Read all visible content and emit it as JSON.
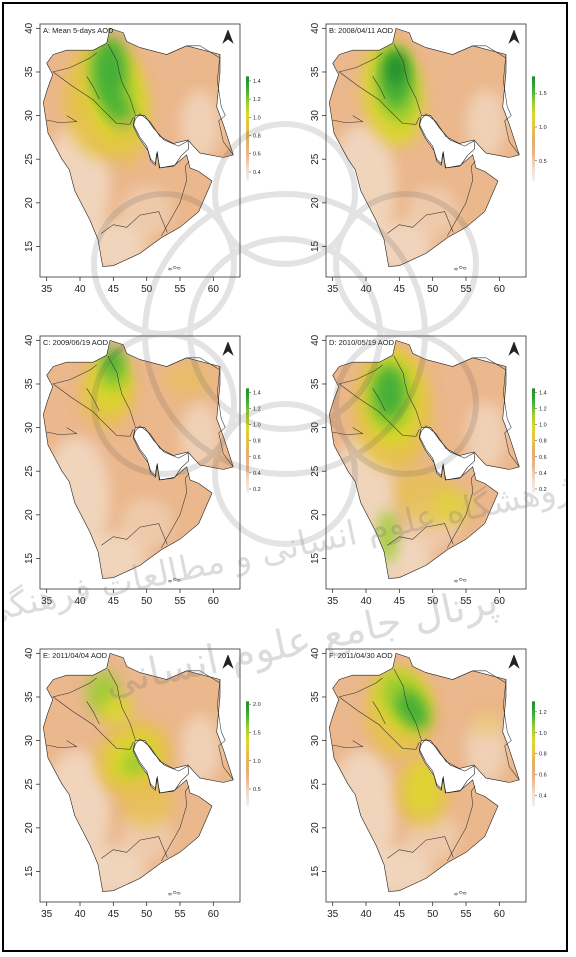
{
  "figure": {
    "panels": [
      {
        "id": "A",
        "title": "A: Mean 5-days AOD",
        "legend": {
          "max": 1.45,
          "ticks": [
            "1.4",
            "1.2",
            "1.0",
            "0.8",
            "0.6",
            "0.4"
          ],
          "tick_values": [
            1.4,
            1.2,
            1.0,
            0.8,
            0.6,
            0.4
          ],
          "min": 0.3
        }
      },
      {
        "id": "B",
        "title": "B: 2008/04/11 AOD",
        "legend": {
          "max": 1.75,
          "ticks": [
            "1.5",
            "1.0",
            "0.5"
          ],
          "tick_values": [
            1.5,
            1.0,
            0.5
          ],
          "min": 0.2
        }
      },
      {
        "id": "C",
        "title": "C: 2009/06/19 AOD",
        "legend": {
          "max": 1.45,
          "ticks": [
            "1.4",
            "1.2",
            "1.0",
            "0.8",
            "0.6",
            "0.4",
            "0.2"
          ],
          "tick_values": [
            1.4,
            1.2,
            1.0,
            0.8,
            0.6,
            0.4,
            0.2
          ],
          "min": 0.15
        }
      },
      {
        "id": "D",
        "title": "D: 2010/05/19 AOD",
        "legend": {
          "max": 1.45,
          "ticks": [
            "1.4",
            "1.2",
            "1.0",
            "0.8",
            "0.6",
            "0.4",
            "0.2"
          ],
          "tick_values": [
            1.4,
            1.2,
            1.0,
            0.8,
            0.6,
            0.4,
            0.2
          ],
          "min": 0.15
        }
      },
      {
        "id": "E",
        "title": "E: 2011/04/04 AOD",
        "legend": {
          "max": 2.05,
          "ticks": [
            "2.0",
            "1.5",
            "1.0",
            "0.5"
          ],
          "tick_values": [
            2.0,
            1.5,
            1.0,
            0.5
          ],
          "min": 0.2
        }
      },
      {
        "id": "F",
        "title": "F: 2011/04/30 AOD",
        "legend": {
          "max": 1.3,
          "ticks": [
            "1.2",
            "1.0",
            "0.8",
            "0.6",
            "0.4"
          ],
          "tick_values": [
            1.2,
            1.0,
            0.8,
            0.6,
            0.4
          ],
          "min": 0.3
        }
      }
    ],
    "x_ticks": [
      "35",
      "40",
      "45",
      "50",
      "55",
      "60"
    ],
    "x_tick_values": [
      35,
      40,
      45,
      50,
      55,
      60
    ],
    "y_ticks": [
      "40",
      "35",
      "30",
      "25",
      "20",
      "15"
    ],
    "y_tick_values": [
      40,
      35,
      30,
      25,
      20,
      15
    ],
    "lon_range": [
      34,
      64
    ],
    "lat_range": [
      11.5,
      40.5
    ],
    "colorscale": [
      "#f2eef2",
      "#f2dcc8",
      "#ebb78c",
      "#e3ad6c",
      "#e5c24a",
      "#dcd82c",
      "#9ccd30",
      "#3fae38",
      "#1e8a2a"
    ],
    "north_arrow_icon": "north-arrow-icon"
  },
  "watermark": {
    "line1": "پژوهشگاه علوم انسانی و مطالعات فرهنگی",
    "line2": "پرتال جامع علوم انسانی"
  }
}
